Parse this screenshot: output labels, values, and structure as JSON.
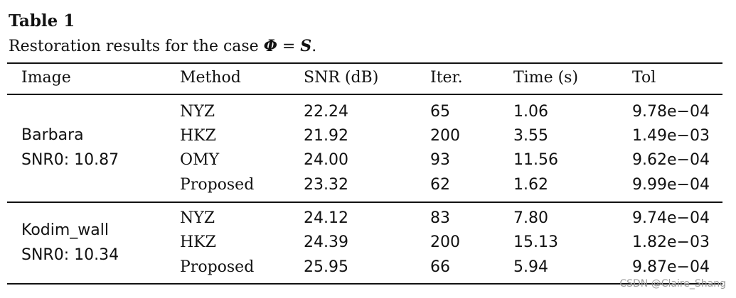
{
  "table": {
    "title": "Table 1",
    "caption_prefix": "Restoration results for the case ",
    "caption_math_left": "Φ",
    "caption_math_eq": " = ",
    "caption_math_right": "S",
    "caption_suffix": ".",
    "headers": [
      "Image",
      "Method",
      "SNR (dB)",
      "Iter.",
      "Time (s)",
      "Tol"
    ],
    "groups": [
      {
        "image_name": "Barbara",
        "image_snr0": "SNR0: 10.87",
        "rows": [
          [
            "NYZ",
            "22.24",
            "65",
            "1.06",
            "9.78e−04"
          ],
          [
            "HKZ",
            "21.92",
            "200",
            "3.55",
            "1.49e−03"
          ],
          [
            "OMY",
            "24.00",
            "93",
            "11.56",
            "9.62e−04"
          ],
          [
            "Proposed",
            "23.32",
            "62",
            "1.62",
            "9.99e−04"
          ]
        ]
      },
      {
        "image_name": "Kodim_wall",
        "image_snr0": "SNR0: 10.34",
        "rows": [
          [
            "NYZ",
            "24.12",
            "83",
            "7.80",
            "9.74e−04"
          ],
          [
            "HKZ",
            "24.39",
            "200",
            "15.13",
            "1.82e−03"
          ],
          [
            "Proposed",
            "25.95",
            "66",
            "5.94",
            "9.87e−04"
          ]
        ]
      }
    ]
  },
  "watermark": "CSDN @Claire_Shang"
}
